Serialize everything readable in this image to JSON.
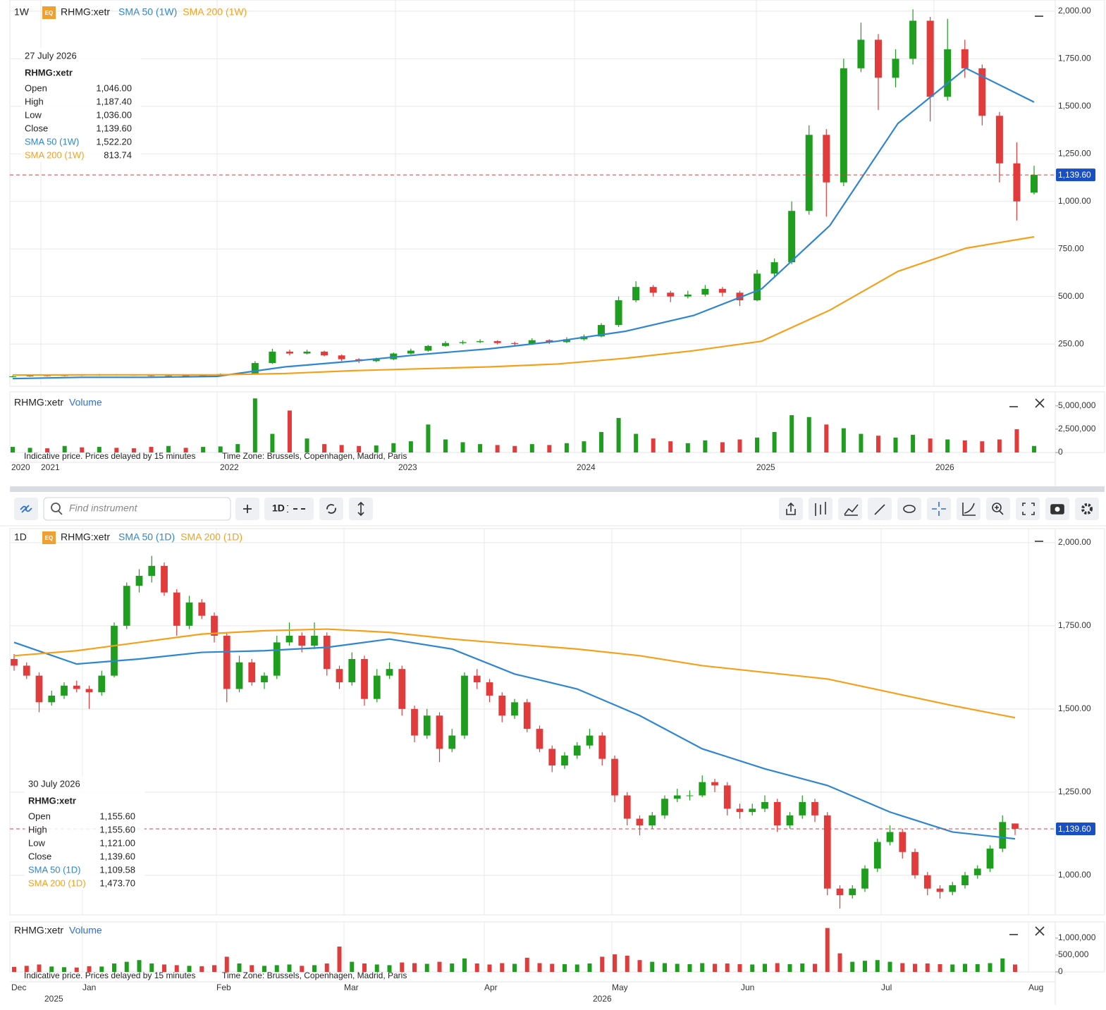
{
  "chart_data": [
    {
      "type": "candlestick",
      "interval": "1W",
      "badge": "EQ",
      "symbol": "RHMG:xetr",
      "up_color": "#1f9d1f",
      "down_color": "#e23b3b",
      "ylim": [
        28,
        2059
      ],
      "yticks": [
        {
          "value": 250,
          "label": "250.00"
        },
        {
          "value": 500,
          "label": "500.00"
        },
        {
          "value": 750,
          "label": "750.00"
        },
        {
          "value": 1000,
          "label": "1,000.00"
        },
        {
          "value": 1250,
          "label": "1,250.00"
        },
        {
          "value": 1500,
          "label": "1,500.00"
        },
        {
          "value": 1750,
          "label": "1,750.00"
        },
        {
          "value": 2000,
          "label": "2,000.00"
        }
      ],
      "price_line": {
        "value": 1139.6,
        "label": "1,139.60"
      },
      "ohlc": [
        [
          78,
          84,
          75,
          80
        ],
        [
          80,
          88,
          78,
          85
        ],
        [
          85,
          87,
          79,
          82
        ],
        [
          82,
          90,
          80,
          88
        ],
        [
          88,
          90,
          82,
          85
        ],
        [
          85,
          93,
          83,
          90
        ],
        [
          90,
          92,
          85,
          88
        ],
        [
          88,
          90,
          83,
          85
        ],
        [
          85,
          87,
          80,
          82
        ],
        [
          82,
          88,
          80,
          85
        ],
        [
          85,
          87,
          78,
          80
        ],
        [
          80,
          88,
          78,
          85
        ],
        [
          85,
          95,
          83,
          92
        ],
        [
          92,
          98,
          88,
          95
        ],
        [
          95,
          160,
          93,
          150
        ],
        [
          150,
          225,
          145,
          210
        ],
        [
          210,
          220,
          190,
          200
        ],
        [
          200,
          220,
          195,
          210
        ],
        [
          210,
          215,
          185,
          190
        ],
        [
          190,
          195,
          160,
          170
        ],
        [
          170,
          175,
          150,
          160
        ],
        [
          160,
          178,
          155,
          170
        ],
        [
          170,
          205,
          165,
          200
        ],
        [
          200,
          225,
          195,
          215
        ],
        [
          215,
          245,
          210,
          240
        ],
        [
          240,
          265,
          235,
          255
        ],
        [
          255,
          270,
          248,
          260
        ],
        [
          260,
          275,
          255,
          265
        ],
        [
          265,
          270,
          248,
          255
        ],
        [
          255,
          262,
          240,
          250
        ],
        [
          250,
          280,
          245,
          270
        ],
        [
          270,
          275,
          250,
          260
        ],
        [
          260,
          285,
          255,
          275
        ],
        [
          275,
          300,
          268,
          290
        ],
        [
          290,
          360,
          285,
          350
        ],
        [
          350,
          500,
          340,
          480
        ],
        [
          480,
          580,
          470,
          550
        ],
        [
          550,
          560,
          500,
          520
        ],
        [
          520,
          530,
          470,
          500
        ],
        [
          500,
          530,
          490,
          510
        ],
        [
          510,
          560,
          500,
          540
        ],
        [
          540,
          550,
          500,
          520
        ],
        [
          520,
          530,
          450,
          480
        ],
        [
          480,
          640,
          475,
          620
        ],
        [
          620,
          700,
          600,
          680
        ],
        [
          680,
          1000,
          670,
          950
        ],
        [
          950,
          1400,
          930,
          1350
        ],
        [
          1350,
          1380,
          920,
          1100
        ],
        [
          1100,
          1750,
          1080,
          1700
        ],
        [
          1700,
          1940,
          1680,
          1850
        ],
        [
          1850,
          1880,
          1480,
          1650
        ],
        [
          1650,
          1800,
          1600,
          1750
        ],
        [
          1750,
          2010,
          1720,
          1950
        ],
        [
          1950,
          1970,
          1420,
          1550
        ],
        [
          1550,
          1960,
          1530,
          1800
        ],
        [
          1800,
          1850,
          1650,
          1700
        ],
        [
          1700,
          1720,
          1400,
          1450
        ],
        [
          1450,
          1470,
          1100,
          1200
        ],
        [
          1200,
          1310,
          900,
          1000
        ],
        [
          1046,
          1187.4,
          1036,
          1139.6
        ]
      ],
      "series": [
        {
          "name": "SMA 50 (1W)",
          "color": "#2f86d0",
          "values": [
            68,
            75,
            75,
            80,
            130,
            160,
            195,
            225,
            265,
            317,
            400,
            540,
            873,
            1410,
            1700,
            1522.2
          ]
        },
        {
          "name": "SMA 200 (1W)",
          "color": "#f5a01a",
          "values": [
            87,
            88,
            88,
            88,
            95,
            110,
            120,
            130,
            145,
            175,
            215,
            265,
            428,
            632,
            754,
            813.74
          ]
        }
      ],
      "legend": {
        "date": "27 July 2026",
        "symbol": "RHMG:xetr",
        "rows": [
          [
            "Open",
            "1,046.00"
          ],
          [
            "High",
            "1,187.40"
          ],
          [
            "Low",
            "1,036.00"
          ],
          [
            "Close",
            "1,139.60"
          ],
          [
            "SMA 50 (1W)",
            "1,522.20"
          ],
          [
            "SMA 200 (1W)",
            "813.74"
          ]
        ]
      }
    },
    {
      "type": "bar",
      "symbol": "RHMG:xetr",
      "name": "Volume",
      "ylim": [
        0,
        6500000
      ],
      "yticks": [
        0,
        {
          "value": 2500000,
          "label": "2,500,000"
        },
        {
          "value": 5000000,
          "label": "5,000,000"
        }
      ],
      "values": [
        600000,
        500000,
        450000,
        700000,
        550000,
        600000,
        500000,
        450000,
        600000,
        700000,
        500000,
        600000,
        650000,
        900000,
        5800000,
        2000000,
        4500000,
        1500000,
        900000,
        800000,
        700000,
        750000,
        1000000,
        1200000,
        3000000,
        1400000,
        1100000,
        900000,
        800000,
        700000,
        900000,
        800000,
        1000000,
        1200000,
        2200000,
        3700000,
        2000000,
        1500000,
        1200000,
        1000000,
        1300000,
        1100000,
        1400000,
        1600000,
        2200000,
        4000000,
        3800000,
        3000000,
        2600000,
        2000000,
        1800000,
        1600000,
        1900000,
        1500000,
        1400000,
        1300000,
        1200000,
        1400000,
        2500000,
        700000
      ],
      "xtick_labels": [
        "2020",
        "2021",
        "2022",
        "2023",
        "2024",
        "2025",
        "2026"
      ],
      "notes": [
        "Indicative price. Prices delayed by 15 minutes",
        "Time Zone: Brussels, Copenhagen, Madrid, Paris"
      ]
    },
    {
      "type": "candlestick",
      "interval": "1D",
      "badge": "EQ",
      "symbol": "RHMG:xetr",
      "up_color": "#1f9d1f",
      "down_color": "#e23b3b",
      "ylim": [
        881,
        2042
      ],
      "yticks": [
        {
          "value": 1000,
          "label": "1,000.00"
        },
        {
          "value": 1250,
          "label": "1,250.00"
        },
        {
          "value": 1500,
          "label": "1,500.00"
        },
        {
          "value": 1750,
          "label": "1,750.00"
        },
        {
          "value": 2000,
          "label": "2,000.00"
        }
      ],
      "price_line": {
        "value": 1139.6,
        "label": "1,139.60"
      },
      "ohlc": [
        [
          1650,
          1665,
          1615,
          1630
        ],
        [
          1630,
          1640,
          1590,
          1600
        ],
        [
          1600,
          1610,
          1490,
          1520
        ],
        [
          1520,
          1555,
          1510,
          1540
        ],
        [
          1540,
          1580,
          1530,
          1570
        ],
        [
          1570,
          1585,
          1550,
          1560
        ],
        [
          1560,
          1570,
          1500,
          1550
        ],
        [
          1550,
          1615,
          1540,
          1600
        ],
        [
          1600,
          1760,
          1595,
          1750
        ],
        [
          1750,
          1880,
          1740,
          1870
        ],
        [
          1870,
          1920,
          1850,
          1900
        ],
        [
          1900,
          1960,
          1880,
          1930
        ],
        [
          1930,
          1940,
          1840,
          1850
        ],
        [
          1850,
          1860,
          1720,
          1750
        ],
        [
          1750,
          1840,
          1740,
          1820
        ],
        [
          1820,
          1830,
          1770,
          1780
        ],
        [
          1780,
          1790,
          1700,
          1720
        ],
        [
          1720,
          1730,
          1520,
          1560
        ],
        [
          1560,
          1660,
          1550,
          1640
        ],
        [
          1640,
          1650,
          1570,
          1580
        ],
        [
          1580,
          1610,
          1560,
          1600
        ],
        [
          1600,
          1720,
          1590,
          1700
        ],
        [
          1700,
          1760,
          1690,
          1720
        ],
        [
          1720,
          1730,
          1670,
          1690
        ],
        [
          1690,
          1760,
          1680,
          1720
        ],
        [
          1720,
          1730,
          1600,
          1620
        ],
        [
          1620,
          1630,
          1560,
          1580
        ],
        [
          1580,
          1670,
          1570,
          1650
        ],
        [
          1650,
          1660,
          1510,
          1530
        ],
        [
          1530,
          1620,
          1520,
          1600
        ],
        [
          1600,
          1640,
          1590,
          1620
        ],
        [
          1620,
          1630,
          1480,
          1500
        ],
        [
          1500,
          1510,
          1400,
          1420
        ],
        [
          1420,
          1500,
          1410,
          1480
        ],
        [
          1480,
          1490,
          1340,
          1380
        ],
        [
          1380,
          1440,
          1370,
          1420
        ],
        [
          1420,
          1610,
          1410,
          1600
        ],
        [
          1600,
          1620,
          1560,
          1580
        ],
        [
          1580,
          1590,
          1520,
          1540
        ],
        [
          1540,
          1550,
          1460,
          1480
        ],
        [
          1480,
          1530,
          1470,
          1520
        ],
        [
          1520,
          1530,
          1430,
          1440
        ],
        [
          1440,
          1450,
          1370,
          1380
        ],
        [
          1380,
          1390,
          1310,
          1330
        ],
        [
          1330,
          1370,
          1320,
          1360
        ],
        [
          1360,
          1400,
          1350,
          1390
        ],
        [
          1390,
          1440,
          1380,
          1420
        ],
        [
          1420,
          1430,
          1330,
          1350
        ],
        [
          1350,
          1360,
          1220,
          1240
        ],
        [
          1240,
          1250,
          1150,
          1170
        ],
        [
          1170,
          1180,
          1120,
          1150
        ],
        [
          1150,
          1190,
          1140,
          1180
        ],
        [
          1180,
          1240,
          1170,
          1230
        ],
        [
          1230,
          1260,
          1220,
          1240
        ],
        [
          1240,
          1255,
          1225,
          1240
        ],
        [
          1240,
          1300,
          1235,
          1280
        ],
        [
          1280,
          1290,
          1250,
          1270
        ],
        [
          1270,
          1280,
          1180,
          1200
        ],
        [
          1200,
          1215,
          1170,
          1190
        ],
        [
          1190,
          1215,
          1180,
          1200
        ],
        [
          1200,
          1240,
          1190,
          1220
        ],
        [
          1220,
          1230,
          1130,
          1150
        ],
        [
          1150,
          1190,
          1140,
          1180
        ],
        [
          1180,
          1240,
          1170,
          1220
        ],
        [
          1220,
          1230,
          1160,
          1180
        ],
        [
          1180,
          1190,
          940,
          960
        ],
        [
          960,
          970,
          900,
          940
        ],
        [
          940,
          970,
          930,
          960
        ],
        [
          960,
          1030,
          950,
          1020
        ],
        [
          1020,
          1110,
          1010,
          1100
        ],
        [
          1100,
          1150,
          1090,
          1130
        ],
        [
          1130,
          1140,
          1050,
          1070
        ],
        [
          1070,
          1080,
          990,
          1000
        ],
        [
          1000,
          1010,
          940,
          960
        ],
        [
          960,
          970,
          930,
          950
        ],
        [
          950,
          980,
          940,
          970
        ],
        [
          970,
          1010,
          960,
          1000
        ],
        [
          1000,
          1030,
          990,
          1020
        ],
        [
          1020,
          1090,
          1010,
          1080
        ],
        [
          1080,
          1180,
          1070,
          1160
        ],
        [
          1155.6,
          1155.6,
          1121,
          1139.6
        ]
      ],
      "series": [
        {
          "name": "SMA 50 (1D)",
          "color": "#2f86d0",
          "values": [
            1700,
            1635,
            1650,
            1670,
            1675,
            1685,
            1710,
            1680,
            1605,
            1560,
            1480,
            1380,
            1320,
            1270,
            1190,
            1130,
            1109.58
          ]
        },
        {
          "name": "SMA 200 (1D)",
          "color": "#f5a01a",
          "values": [
            1660,
            1675,
            1700,
            1725,
            1735,
            1740,
            1730,
            1710,
            1695,
            1680,
            1660,
            1630,
            1610,
            1590,
            1550,
            1510,
            1473.7
          ]
        }
      ],
      "legend": {
        "date": "30 July 2026",
        "symbol": "RHMG:xetr",
        "rows": [
          [
            "Open",
            "1,155.60"
          ],
          [
            "High",
            "1,155.60"
          ],
          [
            "Low",
            "1,121.00"
          ],
          [
            "Close",
            "1,139.60"
          ],
          [
            "SMA 50 (1D)",
            "1,109.58"
          ],
          [
            "SMA 200 (1D)",
            "1,473.70"
          ]
        ]
      }
    },
    {
      "type": "bar",
      "symbol": "RHMG:xetr",
      "name": "Volume",
      "ylim": [
        0,
        1480000
      ],
      "yticks": [
        0,
        {
          "value": 500000,
          "label": "500,000"
        },
        {
          "value": 1000000,
          "label": "1,000,000"
        }
      ],
      "values": [
        150000,
        180000,
        220000,
        160000,
        140000,
        130000,
        170000,
        160000,
        250000,
        300000,
        350000,
        250000,
        220000,
        200000,
        180000,
        170000,
        200000,
        450000,
        250000,
        200000,
        180000,
        200000,
        220000,
        180000,
        200000,
        250000,
        750000,
        300000,
        250000,
        220000,
        200000,
        280000,
        260000,
        240000,
        300000,
        250000,
        400000,
        250000,
        220000,
        260000,
        240000,
        420000,
        260000,
        240000,
        230000,
        220000,
        250000,
        450000,
        520000,
        480000,
        350000,
        300000,
        260000,
        240000,
        230000,
        260000,
        240000,
        250000,
        230000,
        220000,
        240000,
        260000,
        230000,
        250000,
        240000,
        1300000,
        550000,
        300000,
        330000,
        350000,
        300000,
        260000,
        240000,
        250000,
        230000,
        220000,
        240000,
        230000,
        260000,
        400000,
        220000
      ],
      "xtick_labels": [
        "Dec",
        "Jan",
        "Feb",
        "Mar",
        "Apr",
        "May",
        "Jun",
        "Jul",
        "Aug"
      ],
      "year_labels": [
        "2025",
        "2026"
      ],
      "notes": [
        "Indicative price. Prices delayed by 15 minutes",
        "Time Zone: Brussels, Copenhagen, Madrid, Paris"
      ]
    }
  ],
  "toolbar": {
    "search_placeholder": "Find instrument",
    "interval": "1D"
  }
}
